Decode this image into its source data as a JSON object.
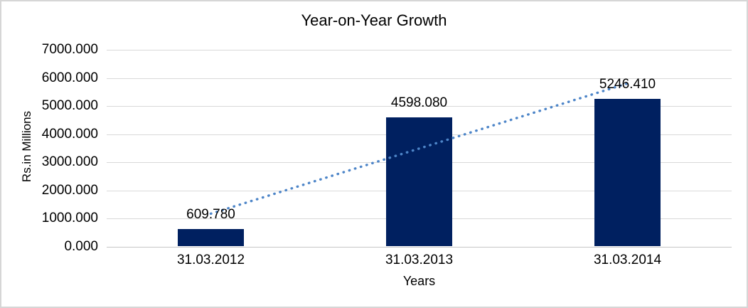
{
  "chart_data": {
    "type": "bar",
    "title": "Year-on-Year Growth",
    "xlabel": "Years",
    "ylabel": "Rs.in Millions",
    "categories": [
      "31.03.2012",
      "31.03.2013",
      "31.03.2014"
    ],
    "values": [
      609.78,
      4598.08,
      5246.41
    ],
    "value_labels": [
      "609.780",
      "4598.080",
      "5246.410"
    ],
    "ylim": [
      0,
      7000
    ],
    "yticks": [
      {
        "value": 0,
        "label": "0.000"
      },
      {
        "value": 1000,
        "label": "1000.000"
      },
      {
        "value": 2000,
        "label": "2000.000"
      },
      {
        "value": 3000,
        "label": "3000.000"
      },
      {
        "value": 4000,
        "label": "4000.000"
      },
      {
        "value": 5000,
        "label": "5000.000"
      },
      {
        "value": 6000,
        "label": "6000.000"
      },
      {
        "value": 7000,
        "label": "7000.000"
      }
    ],
    "grid": true,
    "legend": "none",
    "trendline": {
      "type": "linear",
      "style": "dotted",
      "color": "#4D85C8"
    },
    "colors": {
      "bar": "#002060",
      "gridline": "#D9D9D9",
      "axis_line": "#C6C6C6",
      "text": "#000000",
      "background": "#FFFFFF",
      "border": "#D6D6D6"
    }
  }
}
